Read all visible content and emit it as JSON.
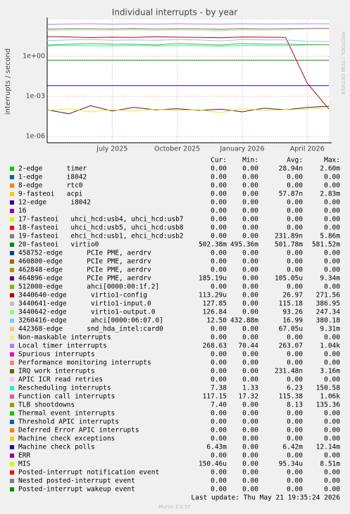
{
  "chart_data": {
    "type": "line",
    "title": "Individual interrupts - by year",
    "y_label": "interrupts / second",
    "side_text": "RRDTOOL / TOBI OETIKER",
    "log_scale": true,
    "grid": true,
    "x": [
      "2025-04",
      "2025-05",
      "2025-06",
      "2025-07",
      "2025-08",
      "2025-09",
      "2025-10",
      "2025-11",
      "2025-12",
      "2026-01",
      "2026-02",
      "2026-03",
      "2026-04",
      "2026-05"
    ],
    "xlim": [
      "2025-04",
      "2026-05"
    ],
    "xticks": [
      {
        "value": "2025-07",
        "label": "July 2025"
      },
      {
        "value": "2025-10",
        "label": "October 2025"
      },
      {
        "value": "2026-01",
        "label": "January 2026"
      },
      {
        "value": "2026-04",
        "label": "April 2026"
      }
    ],
    "ylim": [
      3.4e-07,
      550
    ],
    "yticks": [
      {
        "value": 1,
        "label": "1e+00"
      },
      {
        "value": 0.001,
        "label": "1e-03"
      },
      {
        "value": 1e-06,
        "label": "1e-06"
      }
    ],
    "legend_header": [
      "Cur:",
      "Min:",
      "Avg:",
      "Max:"
    ],
    "series": [
      {
        "name": "2-edge      timer",
        "color": "#00cc00",
        "cur": "0.00",
        "min": "0.00",
        "avg": "28.94n",
        "max": "2.60m"
      },
      {
        "name": "1-edge      i8042",
        "color": "#0066b3",
        "cur": "0.00",
        "min": "0.00",
        "avg": "0.00",
        "max": "0.00"
      },
      {
        "name": "8-edge      rtc0",
        "color": "#ff8000",
        "cur": "0.00",
        "min": "0.00",
        "avg": "0.00",
        "max": "0.00"
      },
      {
        "name": "9-fasteoi   acpi",
        "color": "#ffcc00",
        "cur": "0.00",
        "min": "0.00",
        "avg": "57.87n",
        "max": "2.83m"
      },
      {
        "name": "12-edge      i8042",
        "color": "#330099",
        "cur": "0.00",
        "min": "0.00",
        "avg": "0.00",
        "max": "0.00"
      },
      {
        "name": "16",
        "color": "#990099",
        "cur": "0.00",
        "min": "0.00",
        "avg": "0.00",
        "max": "0.00"
      },
      {
        "name": "17-fasteoi   uhci_hcd:usb4, uhci_hcd:usb7",
        "color": "#ccff00",
        "cur": "0.00",
        "min": "0.00",
        "avg": "0.00",
        "max": "0.00"
      },
      {
        "name": "18-fasteoi   uhci_hcd:usb5, uhci_hcd:usb8",
        "color": "#ff0000",
        "cur": "0.00",
        "min": "0.00",
        "avg": "0.00",
        "max": "0.00"
      },
      {
        "name": "19-fasteoi   ehci_hcd:usb1, ehci_hcd:usb2",
        "color": "#808080",
        "cur": "0.00",
        "min": "0.00",
        "avg": "231.89n",
        "max": "5.86m"
      },
      {
        "name": "20-fasteoi   virtio0",
        "color": "#008f00",
        "cur": "502.38m",
        "min": "495.36m",
        "avg": "501.78m",
        "max": "581.52m",
        "values": [
          0.5,
          0.5,
          0.502,
          0.5,
          0.501,
          0.5,
          0.502,
          0.501,
          0.5,
          0.503,
          0.501,
          0.502,
          0.502,
          0.50238
        ]
      },
      {
        "name": "458752-edge      PCIe PME, aerdrv",
        "color": "#00487d",
        "cur": "0.00",
        "min": "0.00",
        "avg": "0.00",
        "max": "0.00"
      },
      {
        "name": "460800-edge      PCIe PME, aerdrv",
        "color": "#b35a00",
        "cur": "0.00",
        "min": "0.00",
        "avg": "0.00",
        "max": "0.00"
      },
      {
        "name": "462848-edge      PCIe PME, aerdrv",
        "color": "#b38f00",
        "cur": "0.00",
        "min": "0.00",
        "avg": "0.00",
        "max": "0.00"
      },
      {
        "name": "464896-edge      PCIe PME, aerdrv",
        "color": "#6b006b",
        "cur": "185.19u",
        "min": "0.00",
        "avg": "105.05u",
        "max": "9.34m",
        "values": [
          0.0001,
          5e-05,
          0.0002,
          8e-05,
          0.00015,
          0.0001,
          0.00012,
          9e-05,
          0.00011,
          7e-05,
          0.00013,
          0.0001,
          0.00015,
          0.000185
        ]
      },
      {
        "name": "512000-edge      ahci[0000:00:1f.2]",
        "color": "#8fb300",
        "cur": "0.00",
        "min": "0.00",
        "avg": "0.00",
        "max": "0.00"
      },
      {
        "name": "3440640-edge      virtio1-config",
        "color": "#b30000",
        "cur": "113.29u",
        "min": "0.00",
        "avg": "26.97",
        "max": "271.56",
        "values": [
          30,
          28,
          25,
          27,
          26,
          29,
          27,
          26,
          24,
          28,
          27,
          26,
          0.01,
          0.000113
        ]
      },
      {
        "name": "3440641-edge      virtio1-input.0",
        "color": "#bebebe",
        "cur": "127.85",
        "min": "0.00",
        "avg": "115.18",
        "max": "386.95",
        "values": [
          105,
          120,
          118,
          110,
          125,
          112,
          118,
          115,
          100,
          122,
          113,
          117,
          125,
          127.85
        ]
      },
      {
        "name": "3440642-edge      virtio1-output.0",
        "color": "#80ff80",
        "cur": "126.84",
        "min": "0.00",
        "avg": "93.26",
        "max": "247.34",
        "values": [
          85,
          95,
          92,
          90,
          98,
          88,
          96,
          93,
          80,
          97,
          91,
          94,
          120,
          126.84
        ]
      },
      {
        "name": "3260416-edge      ahci[0000:06:07.0]",
        "color": "#80c9ff",
        "cur": "12.50",
        "min": "432.88m",
        "avg": "16.99",
        "max": "380.18",
        "values": [
          15,
          17,
          18,
          16,
          17,
          16,
          18,
          17,
          14,
          18,
          17,
          17,
          13,
          12.5
        ]
      },
      {
        "name": "442368-edge      snd_hda_intel:card0",
        "color": "#ffc080",
        "cur": "0.00",
        "min": "0.00",
        "avg": "67.05u",
        "max": "9.31m"
      },
      {
        "name": "Non-maskable interrupts",
        "color": "#ffe680",
        "cur": "0.00",
        "min": "0.00",
        "avg": "0.00",
        "max": "0.00"
      },
      {
        "name": "Local timer interrupts",
        "color": "#aa80ff",
        "cur": "268.63",
        "min": "70.44",
        "avg": "263.07",
        "max": "1.04k",
        "values": [
          250,
          262,
          270,
          258,
          265,
          260,
          268,
          263,
          255,
          270,
          262,
          266,
          268,
          268.63
        ]
      },
      {
        "name": "Spurious interrupts",
        "color": "#ee00cc",
        "cur": "0.00",
        "min": "0.00",
        "avg": "0.00",
        "max": "0.00"
      },
      {
        "name": "Performance monitoring interrupts",
        "color": "#ff8080",
        "cur": "0.00",
        "min": "0.00",
        "avg": "0.00",
        "max": "0.00"
      },
      {
        "name": "IRQ work interrupts",
        "color": "#666600",
        "cur": "0.00",
        "min": "0.00",
        "avg": "231.48n",
        "max": "3.16m"
      },
      {
        "name": "APIC ICR read retries",
        "color": "#ffbfff",
        "cur": "0.00",
        "min": "0.00",
        "avg": "0.00",
        "max": "0.00"
      },
      {
        "name": "Rescheduling interrupts",
        "color": "#00ffcc",
        "cur": "7.38",
        "min": "1.33",
        "avg": "6.23",
        "max": "150.58",
        "values": [
          6,
          6.5,
          6.2,
          6,
          6.4,
          6.1,
          6.3,
          6.2,
          5.8,
          6.5,
          6.2,
          6.3,
          7,
          7.38
        ]
      },
      {
        "name": "Function call interrupts",
        "color": "#cc6699",
        "cur": "117.15",
        "min": "17.32",
        "avg": "115.38",
        "max": "1.06k",
        "values": [
          110,
          118,
          116,
          112,
          120,
          113,
          117,
          115,
          108,
          119,
          114,
          116,
          117,
          117.15
        ]
      },
      {
        "name": "TLB shootdowns",
        "color": "#999900",
        "cur": "7.40",
        "min": "0.00",
        "avg": "8.13",
        "max": "135.36",
        "values": [
          7,
          8,
          9,
          8,
          8,
          7,
          9,
          8,
          7,
          9,
          8,
          8,
          7.5,
          7.4
        ]
      },
      {
        "name": "Thermal event interrupts",
        "color": "#00cc00",
        "cur": "0.00",
        "min": "0.00",
        "avg": "0.00",
        "max": "0.00"
      },
      {
        "name": "Threshold APIC interrupts",
        "color": "#0066b3",
        "cur": "0.00",
        "min": "0.00",
        "avg": "0.00",
        "max": "0.00"
      },
      {
        "name": "Deferred Error APIC interrupts",
        "color": "#ff8000",
        "cur": "0.00",
        "min": "0.00",
        "avg": "0.00",
        "max": "0.00"
      },
      {
        "name": "Machine check exceptions",
        "color": "#ffcc00",
        "cur": "0.00",
        "min": "0.00",
        "avg": "0.00",
        "max": "0.00"
      },
      {
        "name": "Machine check polls",
        "color": "#330099",
        "cur": "6.43m",
        "min": "0.00",
        "avg": "6.42m",
        "max": "12.14m",
        "values": [
          0.00642,
          0.00642,
          0.00642,
          0.00642,
          0.00642,
          0.00642,
          0.00642,
          0.00642,
          0.00642,
          0.00642,
          0.00642,
          0.00642,
          0.00642,
          0.00643
        ]
      },
      {
        "name": "ERR",
        "color": "#990099",
        "cur": "0.00",
        "min": "0.00",
        "avg": "0.00",
        "max": "0.00"
      },
      {
        "name": "MIS",
        "color": "#ccff00",
        "cur": "150.46u",
        "min": "0.00",
        "avg": "95.34u",
        "max": "8.51m",
        "values": [
          9e-05,
          0.00012,
          7e-05,
          0.0001,
          8e-05,
          0.00011,
          9e-05,
          0.0001,
          6e-05,
          0.00012,
          9e-05,
          0.0001,
          0.00011,
          0.00015046
        ]
      },
      {
        "name": "Posted-interrupt notification event",
        "color": "#ff0000",
        "cur": "0.00",
        "min": "0.00",
        "avg": "0.00",
        "max": "0.00"
      },
      {
        "name": "Nested posted-interrupt event",
        "color": "#808080",
        "cur": "0.00",
        "min": "0.00",
        "avg": "0.00",
        "max": "0.00"
      },
      {
        "name": "Posted-interrupt wakeup event",
        "color": "#008f00",
        "cur": "0.00",
        "min": "0.00",
        "avg": "0.00",
        "max": "0.00"
      }
    ],
    "last_update": "Last update: Thu May 21 19:35:24 2026",
    "footer": "Munin 2.0.57"
  }
}
